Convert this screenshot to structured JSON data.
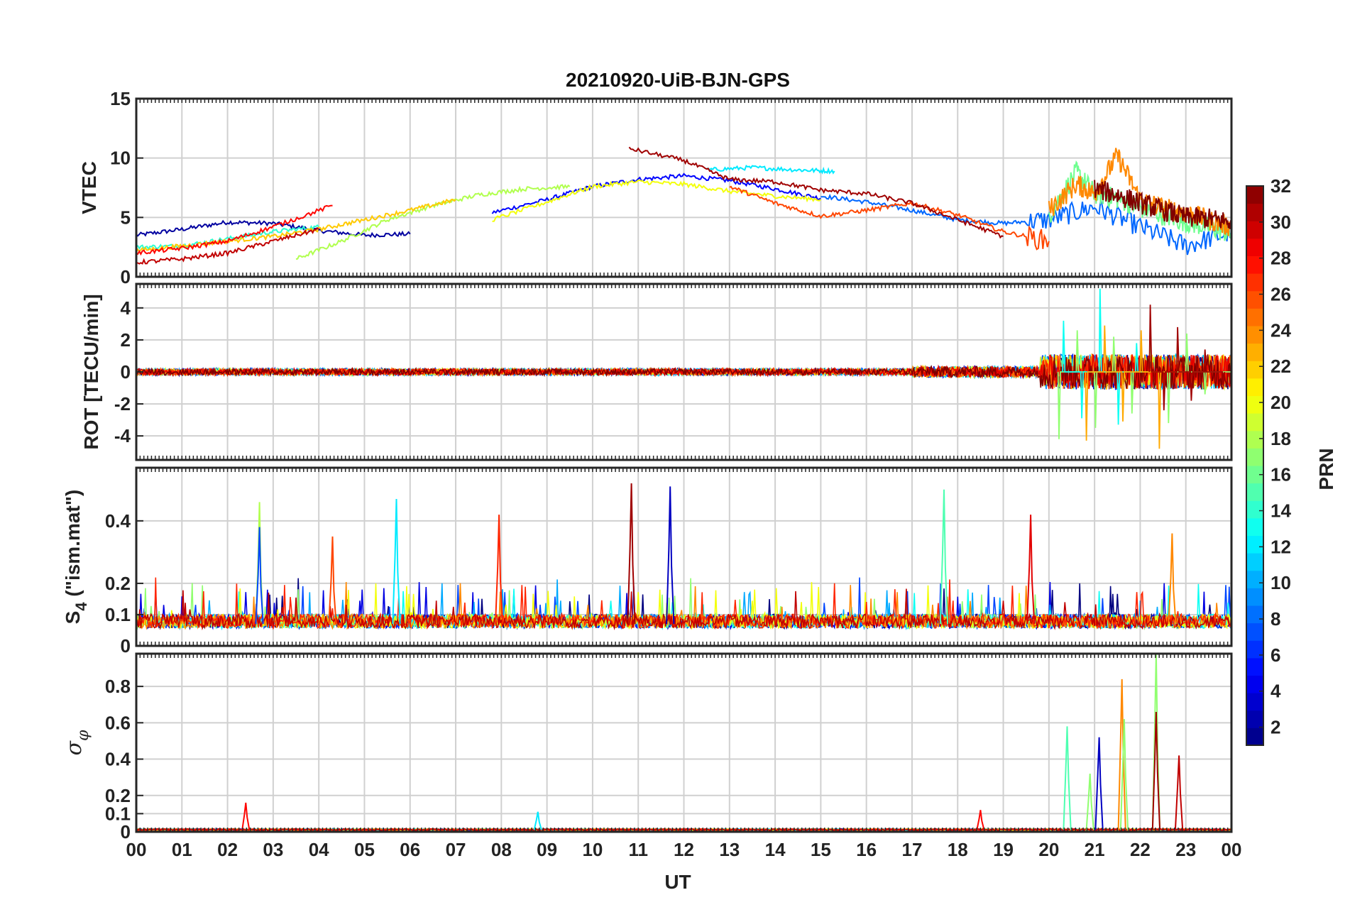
{
  "chart_data": {
    "type": "line",
    "title": "20210920-UiB-BJN-GPS",
    "xlabel": "UT",
    "x_ticks": [
      "00",
      "01",
      "02",
      "03",
      "04",
      "05",
      "06",
      "07",
      "08",
      "09",
      "10",
      "11",
      "12",
      "13",
      "14",
      "15",
      "16",
      "17",
      "18",
      "19",
      "20",
      "21",
      "22",
      "23",
      "00"
    ],
    "xlim": [
      0,
      24
    ],
    "grid": true,
    "colormap": "jet",
    "colorbar": {
      "label": "PRN",
      "range": [
        1,
        32
      ],
      "ticks": [
        "2",
        "4",
        "6",
        "8",
        "10",
        "12",
        "14",
        "16",
        "18",
        "20",
        "22",
        "24",
        "26",
        "28",
        "30",
        "32"
      ],
      "placement": "right"
    },
    "panels": [
      {
        "ylabel": "VTEC",
        "ylim": [
          0,
          15
        ],
        "y_ticks": [
          "0",
          "5",
          "10",
          "15"
        ],
        "series": [
          {
            "prn": 2,
            "x": [
              0,
              1,
              2,
              3,
              4,
              5,
              6
            ],
            "y": [
              3.5,
              4.0,
              4.6,
              4.5,
              3.9,
              3.5,
              3.6
            ]
          },
          {
            "prn": 5,
            "x": [
              7.8,
              9,
              10,
              11,
              12,
              13,
              14,
              15
            ],
            "y": [
              5.4,
              6.5,
              7.6,
              8.2,
              8.5,
              8.1,
              7.4,
              6.6
            ]
          },
          {
            "prn": 8,
            "x": [
              15,
              16,
              17,
              18,
              19,
              20,
              21,
              22,
              23,
              24
            ],
            "y": [
              6.8,
              6.3,
              5.6,
              4.8,
              4.5,
              4.8,
              5.9,
              4.2,
              2.6,
              3.8
            ]
          },
          {
            "prn": 12,
            "x": [
              12.5,
              13.5,
              14.5,
              15.3
            ],
            "y": [
              9.0,
              9.2,
              9.0,
              8.9
            ]
          },
          {
            "prn": 14,
            "x": [
              0,
              1,
              2,
              3,
              4
            ],
            "y": [
              2.5,
              2.6,
              3.2,
              3.8,
              4.2
            ]
          },
          {
            "prn": 16,
            "x": [
              20,
              20.6,
              21,
              21.5,
              22,
              22.5,
              23,
              23.5,
              24
            ],
            "y": [
              5.2,
              8.8,
              7.0,
              6.6,
              5.8,
              5.2,
              4.6,
              4.2,
              3.6
            ]
          },
          {
            "prn": 18,
            "x": [
              3.5,
              4.5,
              5.5,
              6.5,
              7.5,
              8.5,
              9.5
            ],
            "y": [
              1.5,
              3.0,
              4.8,
              6.0,
              6.9,
              7.4,
              7.6
            ]
          },
          {
            "prn": 20,
            "x": [
              7.8,
              9,
              10,
              11,
              12,
              13,
              14,
              15
            ],
            "y": [
              4.8,
              6.3,
              7.6,
              8.0,
              7.8,
              7.2,
              6.8,
              6.5
            ]
          },
          {
            "prn": 22,
            "x": [
              0,
              1,
              2,
              3,
              4,
              5,
              6,
              7
            ],
            "y": [
              2.2,
              2.6,
              3.0,
              3.4,
              4.0,
              4.8,
              5.6,
              6.5
            ]
          },
          {
            "prn": 24,
            "x": [
              20,
              20.6,
              21,
              21.5,
              22,
              22.5,
              23,
              23.5,
              24
            ],
            "y": [
              5.6,
              7.8,
              7.0,
              10.2,
              6.5,
              5.8,
              5.4,
              4.8,
              4.2
            ]
          },
          {
            "prn": 26,
            "x": [
              13,
              14,
              15,
              16,
              17,
              18,
              19,
              20
            ],
            "y": [
              7.6,
              6.2,
              5.1,
              5.6,
              6.2,
              5.2,
              3.8,
              3.0
            ]
          },
          {
            "prn": 28,
            "x": [
              0,
              1,
              2,
              3,
              4.3
            ],
            "y": [
              2.0,
              2.4,
              3.0,
              4.2,
              6.0
            ]
          },
          {
            "prn": 30,
            "x": [
              0,
              1,
              2,
              3,
              4
            ],
            "y": [
              1.2,
              1.5,
              2.0,
              3.0,
              4.0
            ]
          },
          {
            "prn": 31,
            "x": [
              10.8,
              12,
              13,
              14,
              15,
              16,
              17,
              18,
              19
            ],
            "y": [
              10.8,
              9.8,
              8.2,
              8.0,
              7.3,
              7.0,
              6.2,
              4.8,
              3.4
            ]
          },
          {
            "prn": 32,
            "x": [
              21,
              21.5,
              22,
              22.5,
              23,
              23.5,
              24
            ],
            "y": [
              7.4,
              6.9,
              6.2,
              5.6,
              5.0,
              4.9,
              4.6
            ]
          }
        ]
      },
      {
        "ylabel": "ROT [TECU/min]",
        "ylim": [
          -5.5,
          5.5
        ],
        "y_ticks": [
          "-4",
          "-2",
          "0",
          "2",
          "4"
        ],
        "series": [
          {
            "prn": 17,
            "x": [
              20.2,
              20.6,
              21,
              21.4,
              21.8,
              22.2,
              22.6,
              23,
              23.4,
              24
            ],
            "y": [
              -4.2,
              2.6,
              -3.5,
              2.2,
              -2.6,
              3.0,
              -3.2,
              2.4,
              -1.4,
              0.6
            ]
          },
          {
            "prn": 13,
            "x": [
              20.3,
              20.7,
              21.1,
              21.5,
              21.9
            ],
            "y": [
              3.2,
              -2.9,
              5.2,
              -3.3,
              1.8
            ]
          },
          {
            "prn": 23,
            "x": [
              20.8,
              21.2,
              21.6,
              22.0,
              22.4,
              22.8
            ],
            "y": [
              -4.3,
              2.9,
              -3.1,
              2.6,
              -4.8,
              2.2
            ]
          },
          {
            "prn": 31,
            "x": [
              22.2,
              22.5,
              22.8,
              23.1,
              23.4,
              23.8
            ],
            "y": [
              4.2,
              -2.4,
              2.8,
              -1.8,
              1.4,
              -0.9
            ]
          }
        ]
      },
      {
        "ylabel": "S4 (\"ism.mat\")",
        "ylabel_main": "S",
        "ylabel_sub": "4",
        "ylabel_tail": " (\"ism.mat\")",
        "ylim": [
          0,
          0.57
        ],
        "y_ticks": [
          "0",
          "0.1",
          "0.2",
          "0.4"
        ],
        "peaks": [
          {
            "prn": 31,
            "x": 10.85,
            "y": 0.52
          },
          {
            "prn": 3,
            "x": 11.7,
            "y": 0.51
          },
          {
            "prn": 15,
            "x": 17.7,
            "y": 0.5
          },
          {
            "prn": 12,
            "x": 5.7,
            "y": 0.47
          },
          {
            "prn": 18,
            "x": 2.7,
            "y": 0.46
          },
          {
            "prn": 27,
            "x": 7.95,
            "y": 0.42
          },
          {
            "prn": 29,
            "x": 19.6,
            "y": 0.42
          },
          {
            "prn": 7,
            "x": 2.7,
            "y": 0.38
          },
          {
            "prn": 24,
            "x": 22.7,
            "y": 0.36
          },
          {
            "prn": 26,
            "x": 4.3,
            "y": 0.35
          }
        ]
      },
      {
        "ylabel": "σφ",
        "ylabel_main": "σ",
        "ylabel_sub": "φ",
        "ylim": [
          0,
          0.98
        ],
        "y_ticks": [
          "0",
          "0.1",
          "0.2",
          "0.4",
          "0.6",
          "0.8"
        ],
        "peaks": [
          {
            "prn": 17,
            "x": 22.35,
            "y": 0.98
          },
          {
            "prn": 24,
            "x": 21.6,
            "y": 0.84
          },
          {
            "prn": 31,
            "x": 22.35,
            "y": 0.66
          },
          {
            "prn": 17,
            "x": 21.65,
            "y": 0.62
          },
          {
            "prn": 15,
            "x": 20.4,
            "y": 0.58
          },
          {
            "prn": 3,
            "x": 21.1,
            "y": 0.52
          },
          {
            "prn": 30,
            "x": 22.85,
            "y": 0.42
          },
          {
            "prn": 17,
            "x": 20.9,
            "y": 0.32
          },
          {
            "prn": 28,
            "x": 2.4,
            "y": 0.16
          },
          {
            "prn": 28,
            "x": 18.5,
            "y": 0.12
          },
          {
            "prn": 12,
            "x": 8.8,
            "y": 0.11
          }
        ]
      }
    ]
  }
}
